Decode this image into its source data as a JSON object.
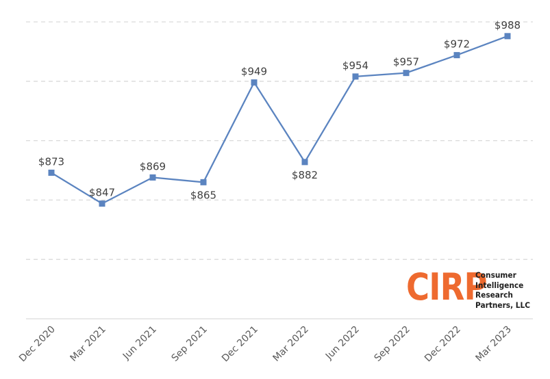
{
  "chart_data": {
    "type": "line",
    "categories": [
      "Dec 2020",
      "Mar 2021",
      "Jun 2021",
      "Sep 2021",
      "Dec 2021",
      "Mar 2022",
      "Jun 2022",
      "Sep 2022",
      "Dec 2022",
      "Mar 2023"
    ],
    "values": [
      873,
      847,
      869,
      865,
      949,
      882,
      954,
      957,
      972,
      988
    ],
    "data_labels": [
      "$873",
      "$847",
      "$869",
      "$865",
      "$949",
      "$882",
      "$954",
      "$957",
      "$972",
      "$988"
    ],
    "label_position": [
      "above",
      "above",
      "above",
      "below",
      "above",
      "below",
      "above",
      "above",
      "above",
      "above"
    ],
    "title": "",
    "xlabel": "",
    "ylabel": "",
    "ylim": [
      750,
      1000
    ],
    "y_gridlines": [
      800,
      850,
      900,
      950,
      1000
    ],
    "y_tick_labels_shown": false,
    "grid": true,
    "legend": "none",
    "colors": {
      "series": "#5b84c0",
      "grid": "#d9d9d9",
      "label": "#404040",
      "logo": "#ee6a2f"
    }
  },
  "logo": {
    "mark": "CIRP",
    "lines": [
      "Consumer",
      "Intelligence",
      "Research",
      "Partners, LLC"
    ]
  }
}
